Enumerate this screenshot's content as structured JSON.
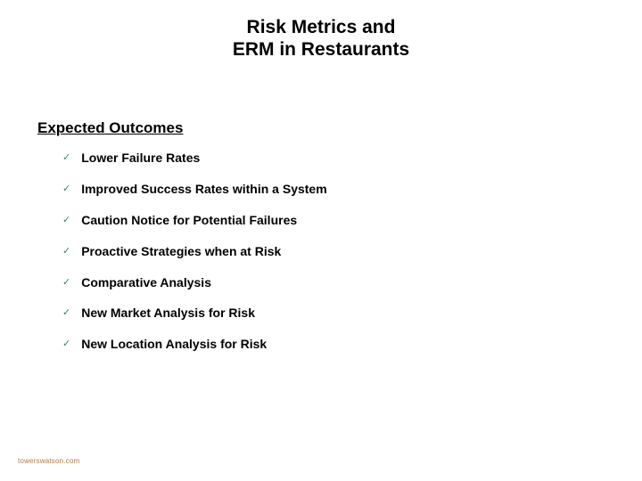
{
  "colors": {
    "title_text": "#000000",
    "heading_text": "#000000",
    "item_text": "#000000",
    "check_color": "#2b8a7a",
    "footer_color": "#b37a4a",
    "background": "#ffffff"
  },
  "title": {
    "line1": "Risk Metrics and",
    "line2": "ERM in Restaurants"
  },
  "section_heading": "Expected Outcomes",
  "outcomes": [
    "Lower Failure Rates",
    "Improved Success Rates within a System",
    "Caution Notice for Potential Failures",
    "Proactive Strategies when at Risk",
    "Comparative Analysis",
    "New Market Analysis for Risk",
    "New Location Analysis for Risk"
  ],
  "footer": "towerswatson.com",
  "check_glyph": "✓"
}
